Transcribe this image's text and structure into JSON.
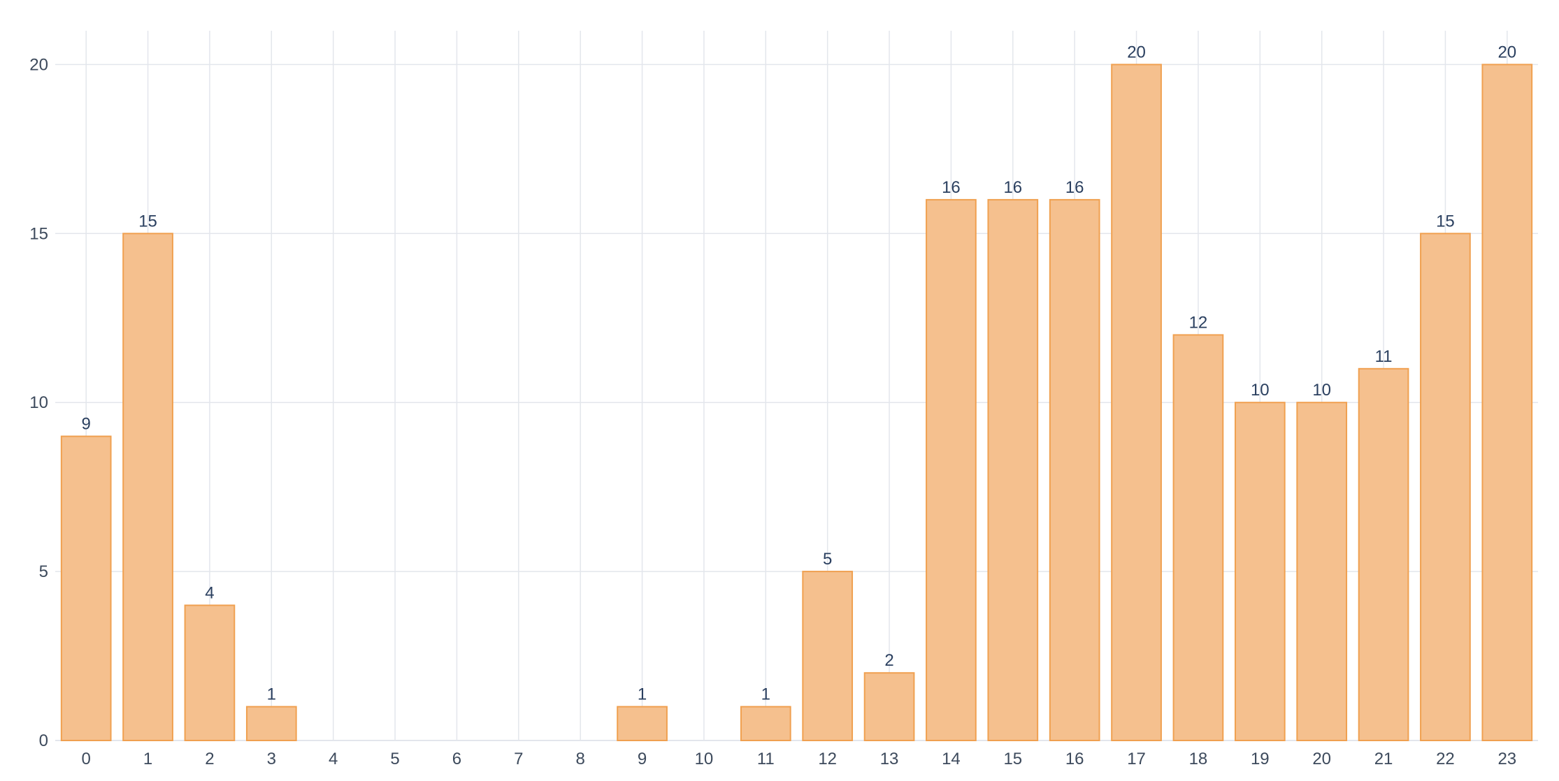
{
  "chart_data": {
    "type": "bar",
    "title": "",
    "xlabel": "",
    "ylabel": "",
    "categories": [
      "0",
      "1",
      "2",
      "3",
      "4",
      "5",
      "6",
      "7",
      "8",
      "9",
      "10",
      "11",
      "12",
      "13",
      "14",
      "15",
      "16",
      "17",
      "18",
      "19",
      "20",
      "21",
      "22",
      "23"
    ],
    "series": [
      {
        "values": [
          9,
          15,
          4,
          1,
          0,
          0,
          0,
          0,
          0,
          1,
          0,
          1,
          5,
          2,
          16,
          16,
          16,
          20,
          12,
          10,
          10,
          11,
          15,
          20
        ],
        "data_labels": [
          "9",
          "15",
          "4",
          "1",
          "",
          "",
          "",
          "",
          "",
          "1",
          "",
          "1",
          "5",
          "2",
          "16",
          "16",
          "16",
          "20",
          "12",
          "10",
          "10",
          "11",
          "15",
          "20"
        ]
      }
    ],
    "ylim": [
      0,
      21
    ],
    "yticks": [
      0,
      5,
      10,
      15,
      20
    ],
    "grid": true,
    "legend": "none",
    "colors": {
      "bar_fill": "#f5c08e",
      "bar_stroke": "#f0a050",
      "grid": "#e3e6ec",
      "tick_text": "#3d4a5c",
      "label_text": "#2a3f5f"
    }
  }
}
